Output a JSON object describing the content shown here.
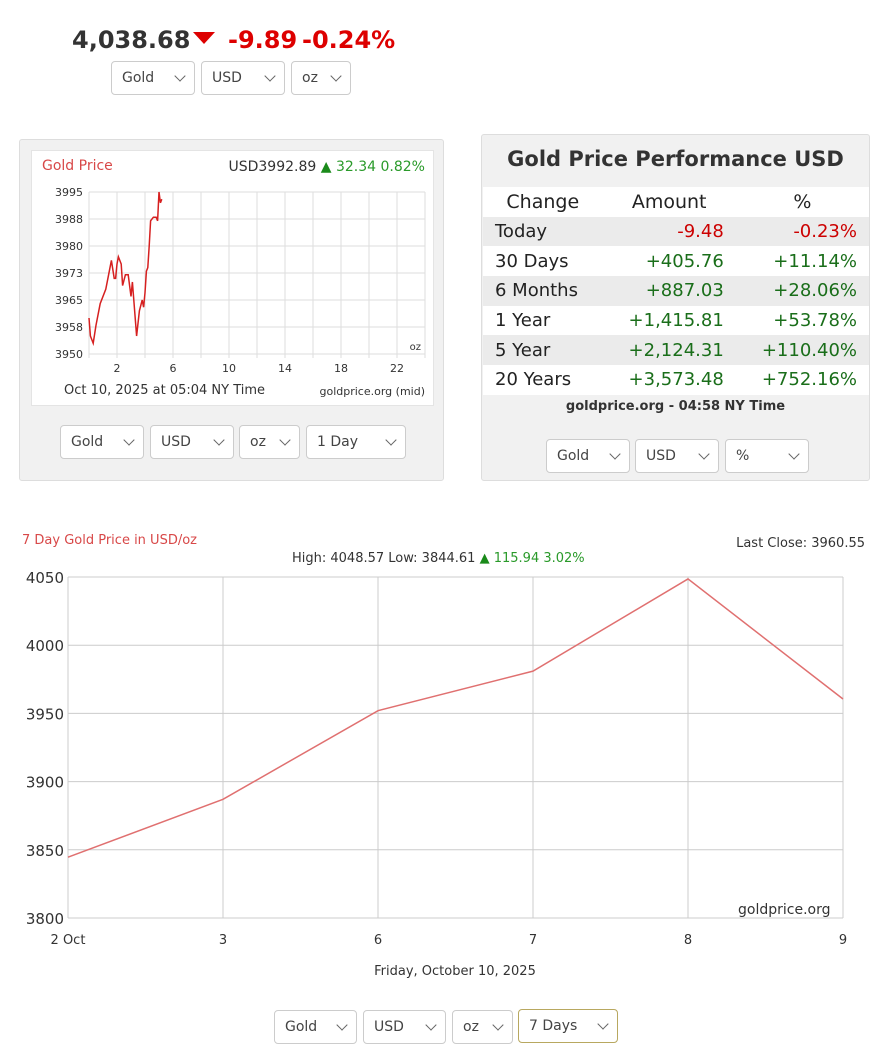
{
  "ticker": {
    "price": "4,038.68",
    "direction_icon": "triangle-down",
    "change": "-9.89",
    "percent": "-0.24%",
    "selects": [
      "Gold",
      "USD",
      "oz"
    ]
  },
  "intraday": {
    "title": "Gold Price",
    "quote": "USD3992.89",
    "change": "32.34 0.82%",
    "footer_time": "Oct 10, 2025 at 05:04 NY Time",
    "source": "goldprice.org (mid)",
    "unit": "oz",
    "selects": [
      "Gold",
      "USD",
      "oz",
      "1 Day"
    ]
  },
  "performance": {
    "title": "Gold Price Performance USD",
    "headers": [
      "Change",
      "Amount",
      "%"
    ],
    "rows": [
      {
        "label": "Today",
        "amount": "-9.48",
        "pct": "-0.23%",
        "neg": true
      },
      {
        "label": "30 Days",
        "amount": "+405.76",
        "pct": "+11.14%"
      },
      {
        "label": "6 Months",
        "amount": "+887.03",
        "pct": "+28.06%"
      },
      {
        "label": "1 Year",
        "amount": "+1,415.81",
        "pct": "+53.78%"
      },
      {
        "label": "5 Year",
        "amount": "+2,124.31",
        "pct": "+110.40%"
      },
      {
        "label": "20 Years",
        "amount": "+3,573.48",
        "pct": "+752.16%"
      }
    ],
    "footer": "goldprice.org - 04:58 NY Time",
    "selects": [
      "Gold",
      "USD",
      "%"
    ]
  },
  "weekly": {
    "title": "7 Day Gold Price in USD/oz",
    "last_close": "Last Close: 3960.55",
    "high_low": "High: 4048.57 Low: 3844.61",
    "change": "115.94 3.02%",
    "watermark": "goldprice.org",
    "date_label": "Friday, October 10, 2025",
    "selects": [
      "Gold",
      "USD",
      "oz",
      "7 Days"
    ]
  },
  "chart_data": [
    {
      "type": "line",
      "title": "Gold Price",
      "x_unit": "hour",
      "xlim": [
        0,
        24
      ],
      "ylim": [
        3950,
        3995
      ],
      "x_ticks": [
        2,
        6,
        10,
        14,
        18,
        22
      ],
      "y_ticks": [
        3995,
        3988,
        3980,
        3973,
        3965,
        3958,
        3950
      ],
      "grid": true,
      "color": "#d62020",
      "x": [
        0,
        0.1,
        0.3,
        0.5,
        0.8,
        1.2,
        1.4,
        1.6,
        1.8,
        1.9,
        2.0,
        2.1,
        2.3,
        2.4,
        2.6,
        2.8,
        3.0,
        3.1,
        3.2,
        3.4,
        3.6,
        3.8,
        3.9,
        4.0,
        4.1,
        4.2,
        4.3,
        4.4,
        4.6,
        4.8,
        4.9,
        5.0,
        5.1,
        5.2
      ],
      "y": [
        3960,
        3955,
        3953,
        3958,
        3964,
        3968,
        3972,
        3976,
        3971,
        3971,
        3975,
        3977,
        3975,
        3969,
        3972,
        3972,
        3966,
        3970,
        3965,
        3955,
        3962,
        3965,
        3963,
        3967,
        3973,
        3974,
        3980,
        3987,
        3988,
        3988,
        3987,
        3995,
        3992,
        3993
      ]
    },
    {
      "type": "line",
      "title": "7 Day Gold Price in USD/oz",
      "categories": [
        "2 Oct",
        "3",
        "6",
        "7",
        "8",
        "9"
      ],
      "values": [
        3844.61,
        3887,
        3952,
        3981,
        4048.57,
        3960.55
      ],
      "ylim": [
        3800,
        4050
      ],
      "y_ticks": [
        4050,
        4000,
        3950,
        3900,
        3850,
        3800
      ],
      "grid": true,
      "color": "#e07070"
    }
  ]
}
